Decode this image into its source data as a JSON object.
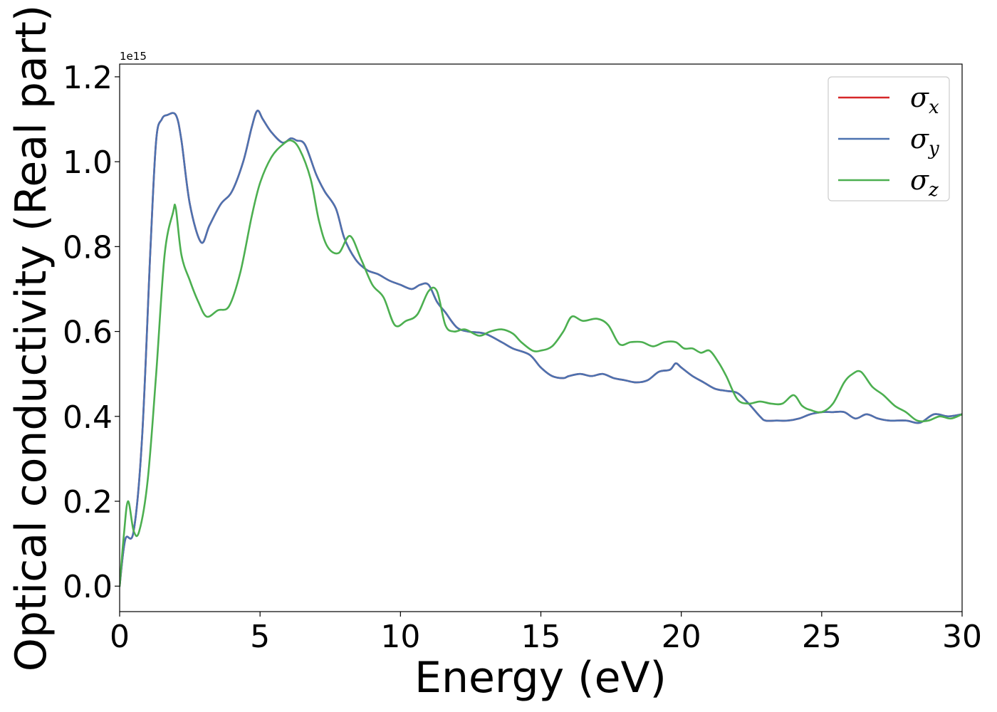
{
  "chart_data": {
    "type": "line",
    "xlabel": "Energy (eV)",
    "ylabel": "Optical conductivity (Real part)",
    "y_offset_text": "1e15",
    "xlim": [
      0,
      30
    ],
    "ylim": [
      -0.06,
      1.23
    ],
    "x_ticks": [
      0,
      5,
      10,
      15,
      20,
      25,
      30
    ],
    "x_tick_labels": [
      "0",
      "5",
      "10",
      "15",
      "20",
      "25",
      "30"
    ],
    "y_ticks": [
      0.0,
      0.2,
      0.4,
      0.6,
      0.8,
      1.0,
      1.2
    ],
    "y_tick_labels": [
      "0.0",
      "0.2",
      "0.4",
      "0.6",
      "0.8",
      "1.0",
      "1.2"
    ],
    "grid": false,
    "legend_position": "top-right",
    "series": [
      {
        "symbol": "σ",
        "subscript": "x",
        "color": "#d62728",
        "x": [
          0,
          0.2,
          0.5,
          0.8,
          1.1,
          1.3,
          1.5,
          1.7,
          2.0,
          2.2,
          2.5,
          2.9,
          3.2,
          3.6,
          4.0,
          4.4,
          4.7,
          4.9,
          5.1,
          5.4,
          5.8,
          6.1,
          6.3,
          6.6,
          7.0,
          7.3,
          7.7,
          8.0,
          8.4,
          8.8,
          9.2,
          9.6,
          10.0,
          10.4,
          10.7,
          11.0,
          11.3,
          11.6,
          12.0,
          12.4,
          13.0,
          13.6,
          14.0,
          14.6,
          15.0,
          15.4,
          15.8,
          16.0,
          16.4,
          16.8,
          17.2,
          17.6,
          18.0,
          18.4,
          18.8,
          19.2,
          19.6,
          19.8,
          20.0,
          20.4,
          20.8,
          21.2,
          21.6,
          22.0,
          22.4,
          22.8,
          23.0,
          23.4,
          23.8,
          24.2,
          24.6,
          25.0,
          25.4,
          25.8,
          26.2,
          26.6,
          27.0,
          27.4,
          28.0,
          28.5,
          29.0,
          29.5,
          30.0
        ],
        "y": [
          0.0,
          0.11,
          0.13,
          0.35,
          0.8,
          1.05,
          1.1,
          1.11,
          1.11,
          1.05,
          0.9,
          0.81,
          0.85,
          0.9,
          0.93,
          1.0,
          1.08,
          1.12,
          1.1,
          1.07,
          1.045,
          1.055,
          1.05,
          1.04,
          0.97,
          0.93,
          0.89,
          0.82,
          0.77,
          0.745,
          0.735,
          0.72,
          0.71,
          0.7,
          0.71,
          0.71,
          0.67,
          0.645,
          0.61,
          0.6,
          0.595,
          0.575,
          0.56,
          0.545,
          0.515,
          0.495,
          0.49,
          0.495,
          0.5,
          0.495,
          0.5,
          0.49,
          0.485,
          0.48,
          0.485,
          0.505,
          0.51,
          0.525,
          0.515,
          0.495,
          0.48,
          0.465,
          0.46,
          0.455,
          0.43,
          0.4,
          0.39,
          0.39,
          0.39,
          0.395,
          0.405,
          0.41,
          0.41,
          0.41,
          0.395,
          0.405,
          0.395,
          0.39,
          0.39,
          0.385,
          0.405,
          0.4,
          0.405
        ]
      },
      {
        "symbol": "σ",
        "subscript": "y",
        "color": "#4c72b0",
        "x": [
          0,
          0.2,
          0.5,
          0.8,
          1.1,
          1.3,
          1.5,
          1.7,
          2.0,
          2.2,
          2.5,
          2.9,
          3.2,
          3.6,
          4.0,
          4.4,
          4.7,
          4.9,
          5.1,
          5.4,
          5.8,
          6.1,
          6.3,
          6.6,
          7.0,
          7.3,
          7.7,
          8.0,
          8.4,
          8.8,
          9.2,
          9.6,
          10.0,
          10.4,
          10.7,
          11.0,
          11.3,
          11.6,
          12.0,
          12.4,
          13.0,
          13.6,
          14.0,
          14.6,
          15.0,
          15.4,
          15.8,
          16.0,
          16.4,
          16.8,
          17.2,
          17.6,
          18.0,
          18.4,
          18.8,
          19.2,
          19.6,
          19.8,
          20.0,
          20.4,
          20.8,
          21.2,
          21.6,
          22.0,
          22.4,
          22.8,
          23.0,
          23.4,
          23.8,
          24.2,
          24.6,
          25.0,
          25.4,
          25.8,
          26.2,
          26.6,
          27.0,
          27.4,
          28.0,
          28.5,
          29.0,
          29.5,
          30.0
        ],
        "y": [
          0.0,
          0.11,
          0.13,
          0.35,
          0.8,
          1.05,
          1.1,
          1.11,
          1.11,
          1.05,
          0.9,
          0.81,
          0.85,
          0.9,
          0.93,
          1.0,
          1.08,
          1.12,
          1.1,
          1.07,
          1.045,
          1.055,
          1.05,
          1.04,
          0.97,
          0.93,
          0.89,
          0.82,
          0.77,
          0.745,
          0.735,
          0.72,
          0.71,
          0.7,
          0.71,
          0.71,
          0.67,
          0.645,
          0.61,
          0.6,
          0.595,
          0.575,
          0.56,
          0.545,
          0.515,
          0.495,
          0.49,
          0.495,
          0.5,
          0.495,
          0.5,
          0.49,
          0.485,
          0.48,
          0.485,
          0.505,
          0.51,
          0.525,
          0.515,
          0.495,
          0.48,
          0.465,
          0.46,
          0.455,
          0.43,
          0.4,
          0.39,
          0.39,
          0.39,
          0.395,
          0.405,
          0.41,
          0.41,
          0.41,
          0.395,
          0.405,
          0.395,
          0.39,
          0.39,
          0.385,
          0.405,
          0.4,
          0.405
        ]
      },
      {
        "symbol": "σ",
        "subscript": "z",
        "color": "#4caf50",
        "x": [
          0,
          0.15,
          0.3,
          0.5,
          0.7,
          1.0,
          1.3,
          1.6,
          1.9,
          2.0,
          2.2,
          2.5,
          2.8,
          3.1,
          3.5,
          3.9,
          4.3,
          4.7,
          5.0,
          5.4,
          5.8,
          6.1,
          6.4,
          6.8,
          7.1,
          7.4,
          7.8,
          8.2,
          8.6,
          9.0,
          9.4,
          9.8,
          10.2,
          10.6,
          11.0,
          11.3,
          11.6,
          11.9,
          12.3,
          12.8,
          13.2,
          13.6,
          14.0,
          14.3,
          14.7,
          15.0,
          15.4,
          15.8,
          16.1,
          16.5,
          17.0,
          17.4,
          17.8,
          18.2,
          18.6,
          19.0,
          19.4,
          19.8,
          20.1,
          20.4,
          20.7,
          21.0,
          21.3,
          21.6,
          22.0,
          22.4,
          22.8,
          23.2,
          23.6,
          24.0,
          24.3,
          24.6,
          25.0,
          25.4,
          25.8,
          26.1,
          26.4,
          26.8,
          27.2,
          27.6,
          28.0,
          28.4,
          28.8,
          29.2,
          29.6,
          30.0
        ],
        "y": [
          0.0,
          0.12,
          0.2,
          0.13,
          0.13,
          0.25,
          0.5,
          0.78,
          0.88,
          0.89,
          0.78,
          0.72,
          0.67,
          0.635,
          0.65,
          0.66,
          0.74,
          0.87,
          0.95,
          1.01,
          1.04,
          1.05,
          1.03,
          0.96,
          0.86,
          0.8,
          0.785,
          0.825,
          0.77,
          0.71,
          0.68,
          0.615,
          0.625,
          0.64,
          0.695,
          0.695,
          0.615,
          0.6,
          0.605,
          0.59,
          0.6,
          0.605,
          0.595,
          0.575,
          0.555,
          0.555,
          0.565,
          0.6,
          0.635,
          0.625,
          0.63,
          0.615,
          0.57,
          0.575,
          0.575,
          0.565,
          0.575,
          0.575,
          0.56,
          0.56,
          0.55,
          0.555,
          0.53,
          0.495,
          0.44,
          0.43,
          0.435,
          0.43,
          0.43,
          0.45,
          0.425,
          0.415,
          0.41,
          0.43,
          0.48,
          0.5,
          0.505,
          0.47,
          0.45,
          0.425,
          0.41,
          0.39,
          0.39,
          0.4,
          0.395,
          0.405
        ]
      }
    ]
  }
}
